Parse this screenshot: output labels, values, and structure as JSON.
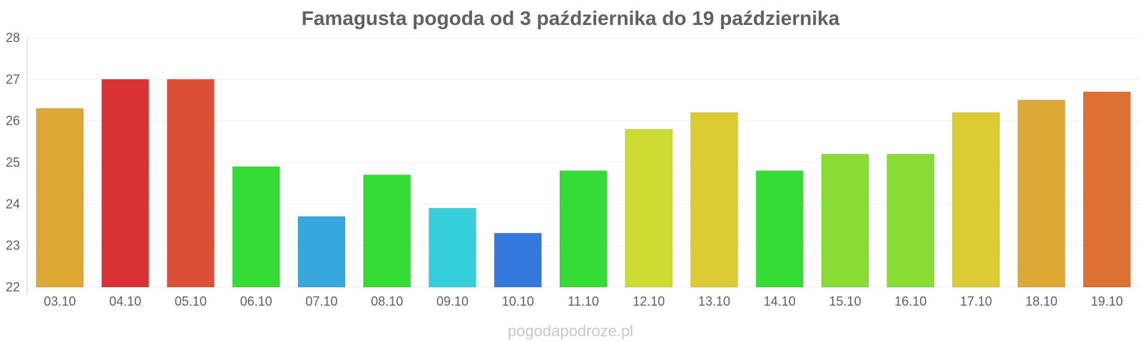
{
  "chart_data": {
    "type": "bar",
    "title": "Famagusta pogoda od 3 października do 19 października",
    "xlabel": "",
    "ylabel": "",
    "ylim": [
      22,
      28
    ],
    "yticks": [
      22,
      23,
      24,
      25,
      26,
      27,
      28
    ],
    "grid": true,
    "legend": "none",
    "categories": [
      "03.10",
      "04.10",
      "05.10",
      "06.10",
      "07.10",
      "08.10",
      "09.10",
      "10.10",
      "11.10",
      "12.10",
      "13.10",
      "14.10",
      "15.10",
      "16.10",
      "17.10",
      "18.10",
      "19.10"
    ],
    "values": [
      26.3,
      27.0,
      27.0,
      24.9,
      23.7,
      24.7,
      23.9,
      23.3,
      24.8,
      25.8,
      26.2,
      24.8,
      25.2,
      25.2,
      26.2,
      26.5,
      26.7
    ],
    "colors": [
      "#dda833",
      "#db3236",
      "#dc5036",
      "#36dc36",
      "#35a7dc",
      "#36dc36",
      "#36cfdc",
      "#3578dc",
      "#36dc36",
      "#cddc33",
      "#dccb33",
      "#36dc36",
      "#89dc33",
      "#89dc33",
      "#dccb33",
      "#dda833",
      "#dd7033"
    ]
  },
  "watermark": "pogodapodroze.pl"
}
